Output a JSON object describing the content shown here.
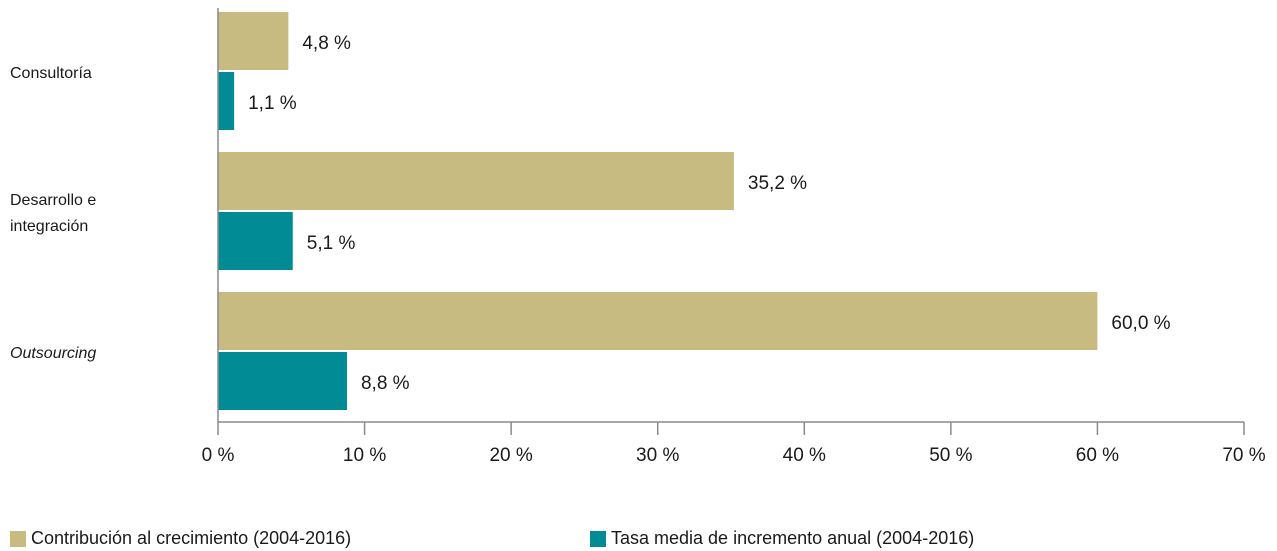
{
  "chart_data": {
    "type": "bar",
    "orientation": "horizontal",
    "categories": [
      "Consultoría",
      "Desarrollo e integración",
      "Outsourcing"
    ],
    "category_lines": [
      [
        "Consultoría"
      ],
      [
        "Desarrollo e",
        "integración"
      ],
      [
        "Outsourcing"
      ]
    ],
    "category_italic": [
      false,
      false,
      true
    ],
    "series": [
      {
        "name": "Contribución al crecimiento (2004-2016)",
        "values": [
          4.8,
          35.2,
          60.0
        ],
        "labels": [
          "4,8 %",
          "35,2 %",
          "60,0 %"
        ],
        "color": "#c7bb82"
      },
      {
        "name": "Tasa media de incremento anual (2004-2016)",
        "values": [
          1.1,
          5.1,
          8.8
        ],
        "labels": [
          "1,1 %",
          "5,1 %",
          "8,8 %"
        ],
        "color": "#008b95"
      }
    ],
    "xlim": [
      0,
      70
    ],
    "xticks": [
      0,
      10,
      20,
      30,
      40,
      50,
      60,
      70
    ],
    "xtick_labels": [
      "0 %",
      "10 %",
      "20 %",
      "30 %",
      "40 %",
      "50 %",
      "60 %",
      "70 %"
    ],
    "grid": false,
    "legend_position": "bottom"
  }
}
